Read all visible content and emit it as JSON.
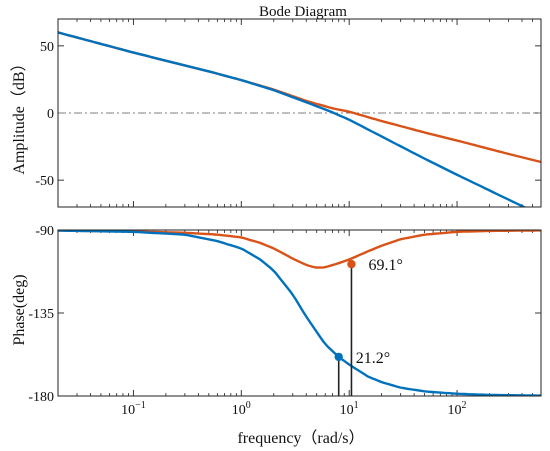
{
  "chart_data": [
    {
      "type": "line",
      "title": "Bode Diagram",
      "ylabel": "Amplitude（dB）",
      "xscale": "log",
      "xlim": [
        0.02,
        600
      ],
      "ylim": [
        -70,
        70
      ],
      "yticks": [
        {
          "value": 50,
          "label": "50"
        },
        {
          "value": 0,
          "label": "0"
        },
        {
          "value": -50,
          "label": "-50"
        }
      ],
      "reference_line": {
        "y": 0,
        "style": "dash-dot",
        "color": "#7f7f7f"
      },
      "grid": false,
      "series": [
        {
          "color": "#d95319",
          "x": [
            0.02,
            0.1,
            0.5,
            1,
            2,
            4,
            7,
            10,
            20,
            50,
            100,
            300,
            600
          ],
          "y": [
            60,
            45,
            31,
            24.5,
            17.5,
            9,
            3.5,
            1,
            -6,
            -14.5,
            -20.5,
            -30.5,
            -36.5
          ]
        },
        {
          "color": "#0072bd",
          "x": [
            0.02,
            0.1,
            0.5,
            1,
            2,
            4,
            7,
            10,
            20,
            50,
            100,
            300,
            600
          ],
          "y": [
            60,
            45,
            31,
            24.5,
            17,
            8,
            0.5,
            -5,
            -17.5,
            -34,
            -46,
            -64.5,
            -76
          ]
        }
      ]
    },
    {
      "type": "line",
      "xlabel": "frequency（rad/s）",
      "ylabel": "Phase(deg)",
      "xscale": "log",
      "xlim": [
        0.02,
        600
      ],
      "ylim": [
        -180,
        -90
      ],
      "xticks": [
        {
          "value": 0.1,
          "base": "10",
          "exp": "−1"
        },
        {
          "value": 1,
          "base": "10",
          "exp": "0"
        },
        {
          "value": 10,
          "base": "10",
          "exp": "1"
        },
        {
          "value": 100,
          "base": "10",
          "exp": "2"
        }
      ],
      "yticks": [
        {
          "value": -90,
          "label": "-90"
        },
        {
          "value": -135,
          "label": "-135"
        },
        {
          "value": -180,
          "label": "-180"
        }
      ],
      "grid": false,
      "series": [
        {
          "color": "#d95319",
          "x": [
            0.02,
            0.1,
            0.3,
            0.6,
            1,
            1.5,
            2,
            3,
            4,
            5,
            6,
            8,
            10,
            15,
            20,
            30,
            50,
            100,
            200,
            600
          ],
          "y": [
            -90.3,
            -90.8,
            -91.5,
            -92.5,
            -94,
            -97,
            -100,
            -105.5,
            -109,
            -110.5,
            -110.2,
            -108,
            -106,
            -101.5,
            -98.5,
            -95,
            -92.5,
            -91,
            -90.5,
            -90.2
          ]
        },
        {
          "color": "#0072bd",
          "x": [
            0.02,
            0.1,
            0.3,
            0.6,
            1,
            1.5,
            2,
            3,
            4,
            6,
            8,
            10,
            15,
            20,
            30,
            50,
            100,
            200,
            600
          ],
          "y": [
            -90.3,
            -91,
            -92.5,
            -96,
            -100,
            -106,
            -112,
            -125,
            -137,
            -152,
            -158.8,
            -163,
            -169.5,
            -172.5,
            -175.5,
            -177.5,
            -178.8,
            -179.4,
            -179.8
          ]
        }
      ],
      "annotations": [
        {
          "label": "69.1°",
          "x": 10.5,
          "y": -108.5,
          "color": "#d95319"
        },
        {
          "label": "21.2°",
          "x": 8,
          "y": -158.8,
          "color": "#0072bd"
        }
      ]
    }
  ]
}
